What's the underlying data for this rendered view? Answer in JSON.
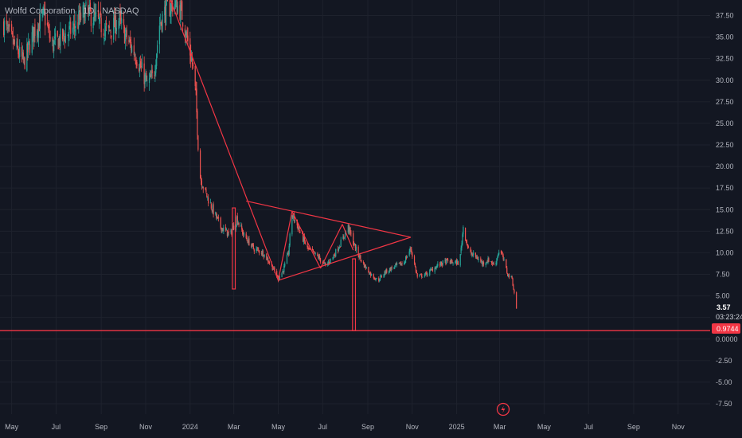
{
  "header": {
    "title": "Wolfd Corporation · 1D · NASDAQ"
  },
  "colors": {
    "background": "#131722",
    "up": "#26a69a",
    "down": "#ef5350",
    "drawing": "#f23645",
    "grid": "#1e222d",
    "text": "#b2b5be"
  },
  "price_badge": {
    "price": "3.57",
    "countdown": "03:23:24"
  },
  "line_badge": {
    "value": "0.9744"
  },
  "logo_icon": "tradingview-replay-icon",
  "chart_data": {
    "type": "candlestick",
    "title": "Wolfd Corporation · 1D · NASDAQ",
    "y_axis_ticks": [
      "37.50",
      "35.00",
      "32.50",
      "30.00",
      "27.50",
      "25.00",
      "22.50",
      "20.00",
      "17.50",
      "15.00",
      "12.50",
      "10.00",
      "7.50",
      "5.00",
      "2.50",
      "0.0000",
      "-2.50",
      "-5.00",
      "-7.50"
    ],
    "y_range": [
      -8.7,
      39.3
    ],
    "x_axis_ticks": [
      "May",
      "Jul",
      "Sep",
      "Nov",
      "2024",
      "Mar",
      "May",
      "Jul",
      "Sep",
      "Nov",
      "2025",
      "Mar",
      "May",
      "Jul",
      "Sep",
      "Nov"
    ],
    "x_range": [
      "2023-04-15",
      "2025-12-15"
    ],
    "last_price": 3.57,
    "horizontal_line": 0.9744,
    "series_close": [
      [
        "2023-04-20",
        36.5
      ],
      [
        "2023-05-05",
        34.0
      ],
      [
        "2023-05-18",
        32.0
      ],
      [
        "2023-06-01",
        35.8
      ],
      [
        "2023-06-15",
        37.5
      ],
      [
        "2023-06-25",
        34.0
      ],
      [
        "2023-07-10",
        35.0
      ],
      [
        "2023-07-25",
        36.0
      ],
      [
        "2023-08-10",
        38.0
      ],
      [
        "2023-08-25",
        37.0
      ],
      [
        "2023-09-10",
        35.5
      ],
      [
        "2023-09-25",
        37.0
      ],
      [
        "2023-10-05",
        35.0
      ],
      [
        "2023-10-18",
        33.0
      ],
      [
        "2023-10-25",
        31.5
      ],
      [
        "2023-11-03",
        29.5
      ],
      [
        "2023-11-12",
        30.5
      ],
      [
        "2023-11-20",
        36.5
      ],
      [
        "2023-11-28",
        38.0
      ],
      [
        "2023-12-10",
        39.0
      ],
      [
        "2023-12-20",
        38.0
      ],
      [
        "2023-12-30",
        34.0
      ],
      [
        "2024-01-04",
        32.0
      ],
      [
        "2024-01-09",
        28.0
      ],
      [
        "2024-01-14",
        19.0
      ],
      [
        "2024-01-22",
        17.0
      ],
      [
        "2024-02-01",
        15.0
      ],
      [
        "2024-02-12",
        13.0
      ],
      [
        "2024-02-25",
        12.0
      ],
      [
        "2024-03-05",
        14.0
      ],
      [
        "2024-03-15",
        12.0
      ],
      [
        "2024-03-28",
        10.5
      ],
      [
        "2024-04-10",
        10.0
      ],
      [
        "2024-04-22",
        8.5
      ],
      [
        "2024-05-01",
        7.0
      ],
      [
        "2024-05-08",
        8.0
      ],
      [
        "2024-05-15",
        10.0
      ],
      [
        "2024-05-20",
        14.5
      ],
      [
        "2024-05-28",
        13.0
      ],
      [
        "2024-06-10",
        10.5
      ],
      [
        "2024-06-25",
        9.5
      ],
      [
        "2024-07-05",
        8.5
      ],
      [
        "2024-07-15",
        9.5
      ],
      [
        "2024-07-28",
        11.5
      ],
      [
        "2024-08-05",
        13.0
      ],
      [
        "2024-08-15",
        10.5
      ],
      [
        "2024-08-25",
        8.8
      ],
      [
        "2024-09-05",
        7.5
      ],
      [
        "2024-09-15",
        6.8
      ],
      [
        "2024-09-25",
        7.8
      ],
      [
        "2024-10-10",
        8.5
      ],
      [
        "2024-10-20",
        8.8
      ],
      [
        "2024-10-30",
        10.5
      ],
      [
        "2024-11-08",
        7.2
      ],
      [
        "2024-11-20",
        7.5
      ],
      [
        "2024-12-05",
        8.5
      ],
      [
        "2024-12-18",
        9.0
      ],
      [
        "2025-01-05",
        8.8
      ],
      [
        "2025-01-10",
        13.0
      ],
      [
        "2025-01-18",
        10.0
      ],
      [
        "2025-01-28",
        9.5
      ],
      [
        "2025-02-05",
        8.8
      ],
      [
        "2025-02-15",
        9.2
      ],
      [
        "2025-02-22",
        8.5
      ],
      [
        "2025-03-01",
        10.5
      ],
      [
        "2025-03-07",
        9.0
      ],
      [
        "2025-03-12",
        7.5
      ],
      [
        "2025-03-18",
        7.0
      ],
      [
        "2025-03-24",
        3.6
      ]
    ],
    "drawings": {
      "lines": [
        {
          "from": [
            "2023-12-05",
            39.3
          ],
          "to": [
            "2024-05-01",
            6.8
          ]
        },
        {
          "from": [
            "2024-03-18",
            16.0
          ],
          "to": [
            "2024-10-30",
            11.8
          ]
        },
        {
          "from": [
            "2024-05-01",
            6.8
          ],
          "to": [
            "2024-10-30",
            11.8
          ]
        },
        {
          "from": [
            "2024-05-01",
            6.8
          ],
          "to": [
            "2024-05-20",
            14.8
          ]
        },
        {
          "from": [
            "2024-05-20",
            14.8
          ],
          "to": [
            "2024-06-28",
            8.2
          ]
        },
        {
          "from": [
            "2024-06-28",
            8.2
          ],
          "to": [
            "2024-07-28",
            13.3
          ]
        },
        {
          "from": [
            "2024-07-28",
            13.3
          ],
          "to": [
            "2024-08-12",
            10.3
          ]
        }
      ],
      "rectangles": [
        {
          "from": [
            "2024-02-28",
            15.2
          ],
          "to": [
            "2024-03-03",
            5.8
          ]
        },
        {
          "from": [
            "2024-08-11",
            9.3
          ],
          "to": [
            "2024-08-15",
            0.97
          ]
        }
      ]
    }
  }
}
